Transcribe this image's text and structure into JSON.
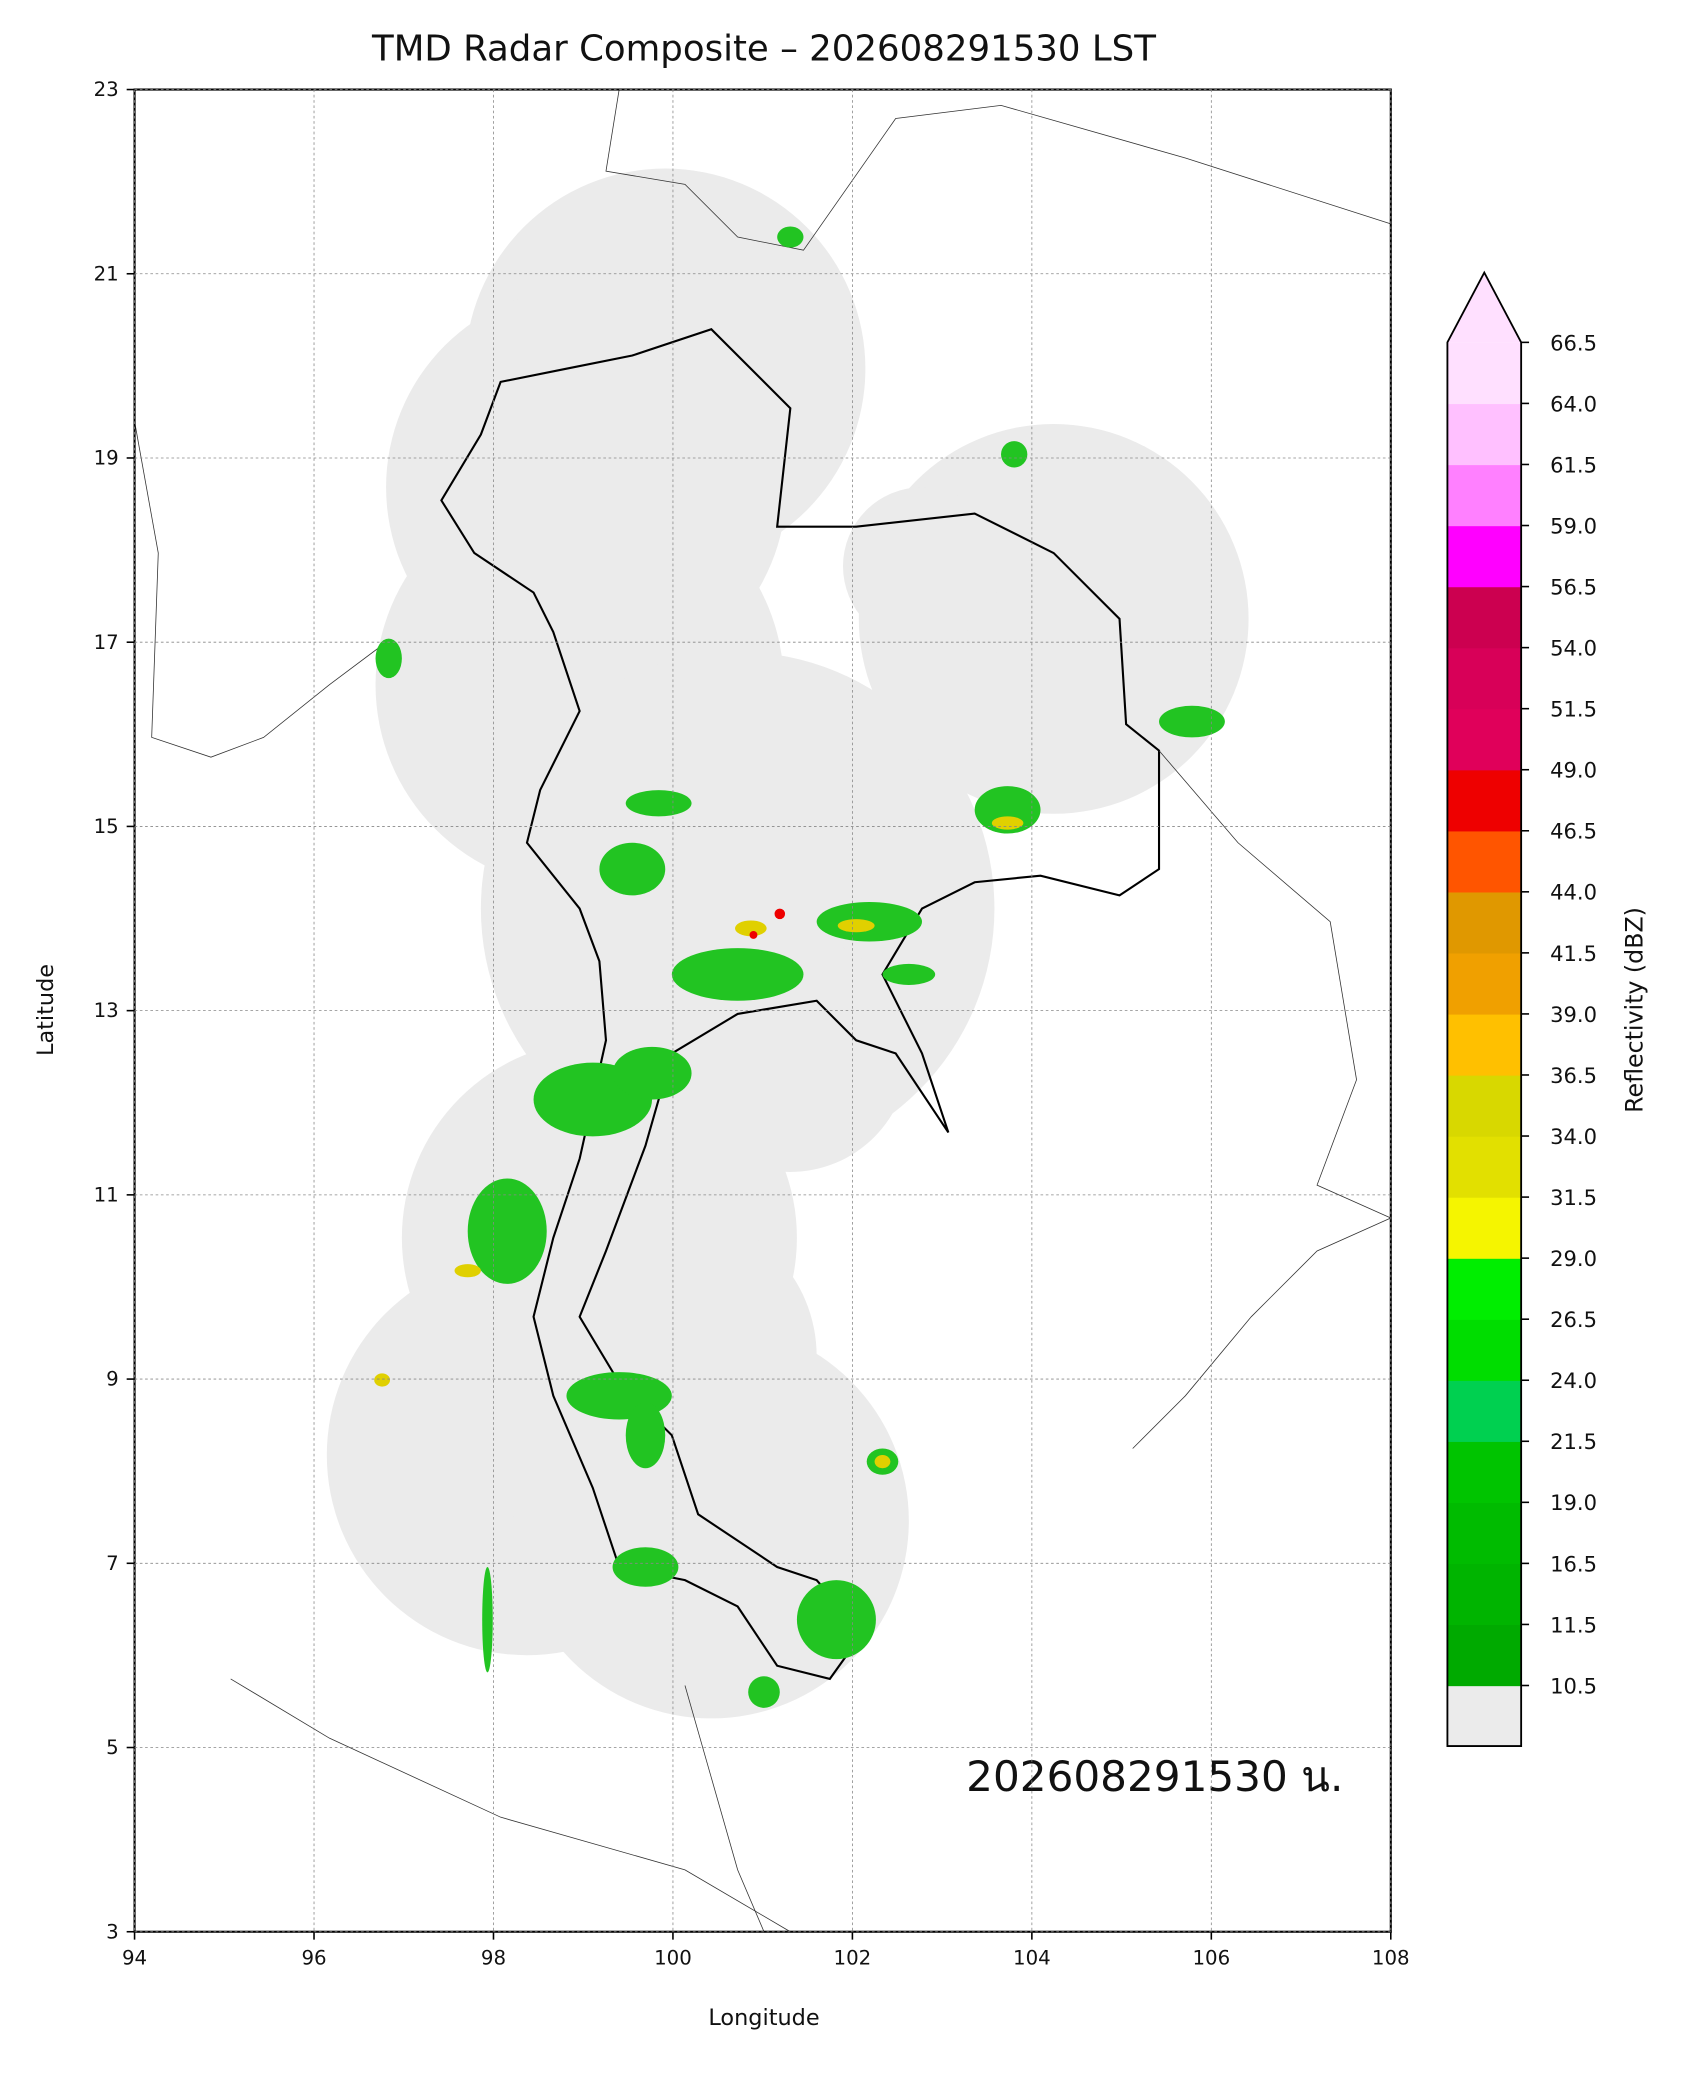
{
  "title": "TMD Radar Composite – 202608291530 LST",
  "annotation": "202608291530 น.",
  "map": {
    "xlabel": "Longitude",
    "ylabel": "Latitude",
    "xlim": [
      94,
      108
    ],
    "ylim": [
      3,
      23
    ],
    "xticks": [
      94,
      96,
      98,
      100,
      102,
      104,
      106,
      108
    ],
    "yticks": [
      3,
      5,
      7,
      9,
      11,
      13,
      15,
      17,
      19,
      21,
      23
    ],
    "grid": true
  },
  "colorbar": {
    "label": "Reflectivity (dBZ)",
    "ticks": [
      10.5,
      11.5,
      16.5,
      {
        "value": 19,
        "label": "19.0"
      },
      21.5,
      {
        "value": 24,
        "label": "24.0"
      },
      26.5,
      {
        "value": 29,
        "label": "29.0"
      },
      31.5,
      {
        "value": 34,
        "label": "34.0"
      },
      36.5,
      {
        "value": 39,
        "label": "39.0"
      },
      41.5,
      {
        "value": 44,
        "label": "44.0"
      },
      46.5,
      {
        "value": 49,
        "label": "49.0"
      },
      51.5,
      {
        "value": 54,
        "label": "54.0"
      },
      56.5,
      {
        "value": 59,
        "label": "59.0"
      },
      61.5,
      {
        "value": 64,
        "label": "64.0"
      },
      66.5
    ],
    "colors": [
      "#00aa00",
      "#00b400",
      "#00bb00",
      "#00c400",
      "#00d050",
      "#00dd00",
      "#00ee00",
      "#f5f500",
      "#e2e000",
      "#d8d800",
      "#ffc000",
      "#f0a000",
      "#e09800",
      "#ff5500",
      "#ee0000",
      "#e0005a",
      "#d80058",
      "#cc0050",
      "#ff00ff",
      "#ff80ff",
      "#ffc0ff",
      "#ffe0ff"
    ],
    "under_color": "#ebebeb",
    "over_color": "#ffe0ff"
  }
}
